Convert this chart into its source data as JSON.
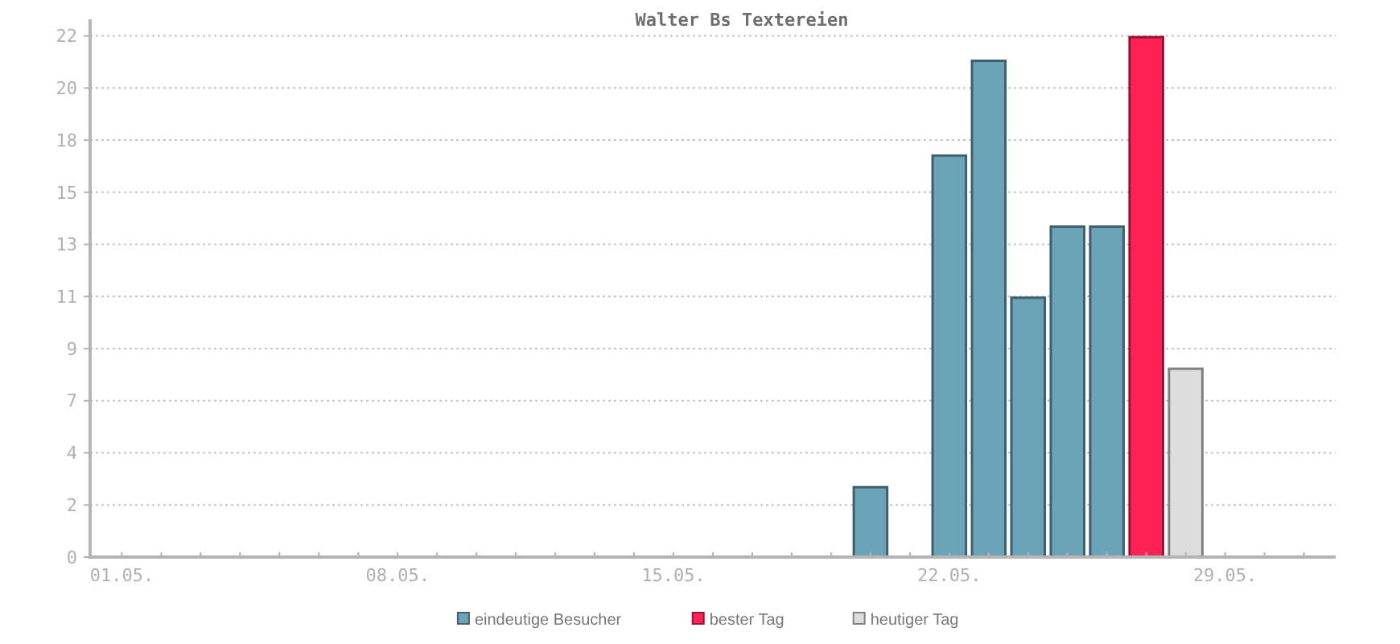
{
  "chart_data": {
    "type": "bar",
    "title": "Walter Bs Textereien",
    "categories": [
      "01.05.",
      null,
      null,
      null,
      null,
      null,
      null,
      "08.05.",
      null,
      null,
      null,
      null,
      null,
      null,
      "15.05.",
      null,
      null,
      null,
      null,
      null,
      null,
      "22.05.",
      null,
      null,
      null,
      null,
      null,
      null,
      "29.05.",
      null,
      null
    ],
    "series": [
      {
        "name": "eindeutige Besucher",
        "color": "#6ba3b8",
        "values": [
          null,
          null,
          null,
          null,
          null,
          null,
          null,
          null,
          null,
          null,
          null,
          null,
          null,
          null,
          null,
          null,
          null,
          null,
          null,
          3,
          null,
          17,
          21,
          11,
          14,
          14,
          null,
          null,
          null,
          null,
          null
        ]
      },
      {
        "name": "bester Tag",
        "color": "#ff2255",
        "values": [
          null,
          null,
          null,
          null,
          null,
          null,
          null,
          null,
          null,
          null,
          null,
          null,
          null,
          null,
          null,
          null,
          null,
          null,
          null,
          null,
          null,
          null,
          null,
          null,
          null,
          null,
          22,
          null,
          null,
          null,
          null
        ]
      },
      {
        "name": "heutiger Tag",
        "color": "#dcdcdc",
        "values": [
          null,
          null,
          null,
          null,
          null,
          null,
          null,
          null,
          null,
          null,
          null,
          null,
          null,
          null,
          null,
          null,
          null,
          null,
          null,
          null,
          null,
          null,
          null,
          null,
          null,
          null,
          null,
          8,
          null,
          null,
          null
        ]
      }
    ],
    "stacked": true,
    "ylim": [
      0,
      22.7
    ],
    "yticks": [
      0,
      {
        "value": 2.2,
        "label": "2"
      },
      {
        "value": 4.4,
        "label": "4"
      },
      {
        "value": 6.6,
        "label": "7"
      },
      {
        "value": 8.8,
        "label": "9"
      },
      11,
      {
        "value": 13.2,
        "label": "13"
      },
      {
        "value": 15.4,
        "label": "15"
      },
      {
        "value": 17.6,
        "label": "18"
      },
      {
        "value": 19.8,
        "label": "20"
      },
      22
    ],
    "grid": "y",
    "legend": "bottom"
  }
}
